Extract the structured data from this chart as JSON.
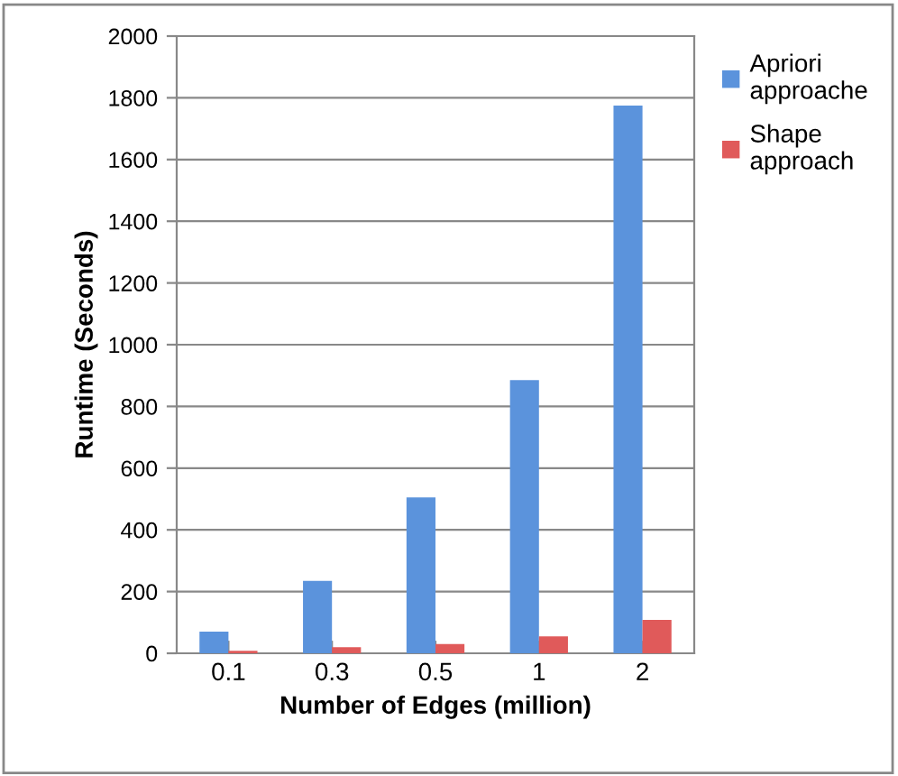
{
  "chart_data": {
    "type": "bar",
    "xlabel": "Number of Edges (million)",
    "ylabel": "Runtime (Seconds)",
    "categories": [
      "0.1",
      "0.3",
      "0.5",
      "1",
      "2"
    ],
    "series": [
      {
        "name": "Apriori approache",
        "color": "#5b93dc",
        "values": [
          70,
          235,
          505,
          885,
          1775
        ]
      },
      {
        "name": "Shape approach",
        "color": "#e05a5a",
        "values": [
          8,
          20,
          30,
          55,
          108
        ]
      }
    ],
    "ylim": [
      0,
      2000
    ],
    "yticks": [
      0,
      200,
      400,
      600,
      800,
      1000,
      1200,
      1400,
      1600,
      1800,
      2000
    ],
    "grid": "y",
    "legend": "right"
  }
}
